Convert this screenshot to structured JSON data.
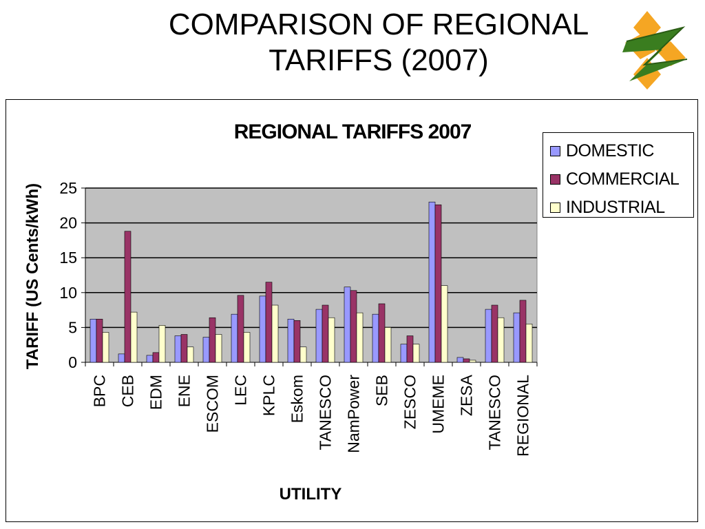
{
  "slide": {
    "title_line1": "COMPARISON OF REGIONAL",
    "title_line2": "TARIFFS (2007)",
    "logo_icon": "diamond-z-logo-icon"
  },
  "chart_data": {
    "type": "bar",
    "title": "REGIONAL TARIFFS 2007",
    "xlabel": "UTILITY",
    "ylabel": "TARIFF (US Cents/kWh)",
    "ylim": [
      0,
      25
    ],
    "yticks": [
      0,
      5,
      10,
      15,
      20,
      25
    ],
    "grid": true,
    "legend_position": "right",
    "plot_background": "#c0c0c0",
    "categories": [
      "BPC",
      "CEB",
      "EDM",
      "ENE",
      "ESCOM",
      "LEC",
      "KPLC",
      "Eskom",
      "TANESCO",
      "NamPower",
      "SEB",
      "ZESCO",
      "UMEME",
      "ZESA",
      "TANESCO",
      "REGIONAL"
    ],
    "series": [
      {
        "name": "DOMESTIC",
        "color": "#9999ff",
        "values": [
          6.2,
          1.2,
          1.0,
          3.8,
          3.6,
          6.9,
          9.5,
          6.2,
          7.6,
          10.8,
          6.9,
          2.6,
          23.0,
          0.7,
          7.6,
          7.1
        ]
      },
      {
        "name": "COMMERCIAL",
        "color": "#993366",
        "values": [
          6.2,
          18.8,
          1.4,
          4.0,
          6.4,
          9.6,
          11.5,
          6.0,
          8.2,
          10.3,
          8.4,
          3.8,
          22.6,
          0.5,
          8.2,
          8.9
        ]
      },
      {
        "name": "INDUSTRIAL",
        "color": "#ffffcc",
        "values": [
          4.3,
          7.2,
          5.3,
          2.2,
          4.0,
          4.3,
          8.2,
          2.2,
          6.4,
          7.1,
          5.0,
          2.6,
          11.0,
          0.3,
          6.4,
          5.5
        ]
      }
    ]
  }
}
